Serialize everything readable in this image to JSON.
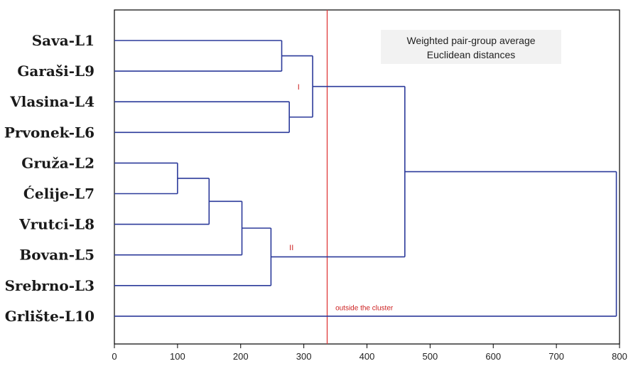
{
  "chart_data": {
    "type": "dendrogram",
    "orientation": "horizontal",
    "title": "Weighted pair-group average",
    "subtitle": "Euclidean distances",
    "xlim": [
      0,
      800
    ],
    "xticks": [
      0,
      100,
      200,
      300,
      400,
      500,
      600,
      700,
      800
    ],
    "leaves": [
      "Sava-L1",
      "Garaši-L9",
      "Vlasina-L4",
      "Prvonek-L6",
      "Gruža-L2",
      "Ćelije-L7",
      "Vrutci-L8",
      "Bovan-L5",
      "Srebrno-L3",
      "Grlište-L10"
    ],
    "merges": [
      {
        "id": "m1",
        "children": [
          "Gruža-L2",
          "Ćelije-L7"
        ],
        "height": 100
      },
      {
        "id": "m2",
        "children": [
          "m1",
          "Vrutci-L8"
        ],
        "height": 150
      },
      {
        "id": "m3",
        "children": [
          "m2",
          "Bovan-L5"
        ],
        "height": 202
      },
      {
        "id": "m4",
        "children": [
          "m3",
          "Srebrno-L3"
        ],
        "height": 248
      },
      {
        "id": "m5",
        "children": [
          "Sava-L1",
          "Garaši-L9"
        ],
        "height": 265
      },
      {
        "id": "m6",
        "children": [
          "Vlasina-L4",
          "Prvonek-L6"
        ],
        "height": 277
      },
      {
        "id": "m7",
        "children": [
          "m5",
          "m6"
        ],
        "height": 314
      },
      {
        "id": "m8",
        "children": [
          "m7",
          "m4"
        ],
        "height": 460
      },
      {
        "id": "m9",
        "children": [
          "m8",
          "Grlište-L10"
        ],
        "height": 795
      }
    ],
    "cutoff_line": {
      "value": 337,
      "color": "#e03a3a"
    },
    "annotations": [
      {
        "text": "I",
        "x": 290,
        "leaf_pos": 1.6
      },
      {
        "text": "II",
        "x": 277,
        "leaf_pos": 6.85
      },
      {
        "text": "outside the cluster",
        "x": 350,
        "leaf_pos": 8.8
      }
    ],
    "colors": {
      "line": "#2b3a9a",
      "cutoff": "#e03a3a",
      "annotation": "#cc1f1f"
    }
  }
}
